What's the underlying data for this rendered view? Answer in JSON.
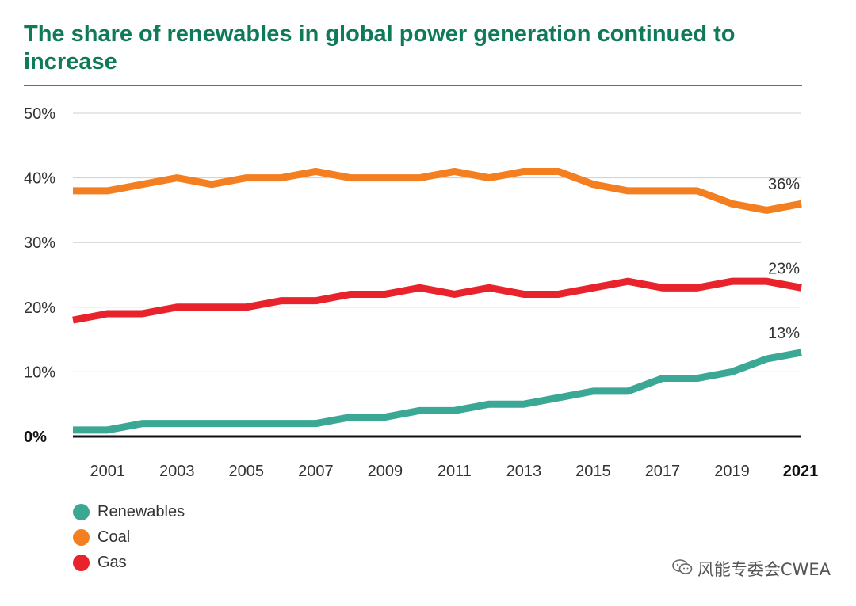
{
  "title": "The share of renewables in global power generation continued to increase",
  "watermark": "风能专委会CWEA",
  "chart_data": {
    "type": "line",
    "x": [
      2000,
      2001,
      2002,
      2003,
      2004,
      2005,
      2006,
      2007,
      2008,
      2009,
      2010,
      2011,
      2012,
      2013,
      2014,
      2015,
      2016,
      2017,
      2018,
      2019,
      2020,
      2021
    ],
    "x_tick_labels": [
      "2001",
      "2003",
      "2005",
      "2007",
      "2009",
      "2011",
      "2013",
      "2015",
      "2017",
      "2019",
      "2021"
    ],
    "x_tick_values": [
      2001,
      2003,
      2005,
      2007,
      2009,
      2011,
      2013,
      2015,
      2017,
      2019,
      2021
    ],
    "y_tick_labels": [
      "0%",
      "10%",
      "20%",
      "30%",
      "40%",
      "50%"
    ],
    "y_tick_values": [
      0,
      10,
      20,
      30,
      40,
      50
    ],
    "ylim": [
      0,
      50
    ],
    "grid": true,
    "series": [
      {
        "name": "Renewables",
        "color": "#3aa894",
        "values": [
          1,
          1,
          2,
          2,
          2,
          2,
          2,
          2,
          3,
          3,
          4,
          4,
          5,
          5,
          6,
          7,
          7,
          9,
          9,
          10,
          12,
          13
        ],
        "end_label": "13%"
      },
      {
        "name": "Coal",
        "color": "#f47f20",
        "values": [
          38,
          38,
          39,
          40,
          39,
          40,
          40,
          41,
          40,
          40,
          40,
          41,
          40,
          41,
          41,
          39,
          38,
          38,
          38,
          36,
          35,
          36
        ],
        "end_label": "36%"
      },
      {
        "name": "Gas",
        "color": "#e8232c",
        "values": [
          18,
          19,
          19,
          20,
          20,
          20,
          21,
          21,
          22,
          22,
          23,
          22,
          23,
          22,
          22,
          23,
          24,
          23,
          23,
          24,
          24,
          23
        ],
        "end_label": "23%"
      }
    ],
    "legend": [
      "Renewables",
      "Coal",
      "Gas"
    ],
    "legend_position": "bottom-left"
  }
}
